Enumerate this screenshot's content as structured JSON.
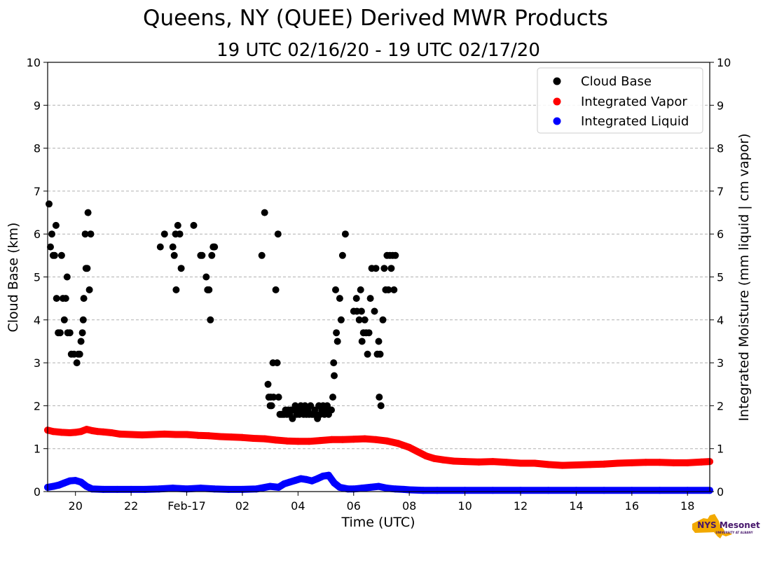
{
  "chart_data": {
    "type": "scatter",
    "title": "Queens, NY (QUEE) Derived MWR Products",
    "subtitle": "19 UTC 02/16/20 - 19 UTC 02/17/20",
    "xlabel": "Time (UTC)",
    "ylabel": "Cloud Base (km)",
    "ylabel_right": "Integrated Moisture (mm liquid | cm vapor)",
    "x_unit": "hours since 00 UTC 02/16/20",
    "xlim": [
      19,
      42.8
    ],
    "ylim": [
      0,
      10
    ],
    "ylim_right": [
      0,
      10
    ],
    "x_ticks": [
      {
        "x": 20,
        "label": "20"
      },
      {
        "x": 22,
        "label": "22"
      },
      {
        "x": 24,
        "label": "Feb-17"
      },
      {
        "x": 26,
        "label": "02"
      },
      {
        "x": 28,
        "label": "04"
      },
      {
        "x": 30,
        "label": "06"
      },
      {
        "x": 32,
        "label": "08"
      },
      {
        "x": 34,
        "label": "10"
      },
      {
        "x": 36,
        "label": "12"
      },
      {
        "x": 38,
        "label": "14"
      },
      {
        "x": 40,
        "label": "16"
      },
      {
        "x": 42,
        "label": "18"
      }
    ],
    "y_ticks": [
      "0",
      "1",
      "2",
      "3",
      "4",
      "5",
      "6",
      "7",
      "8",
      "9",
      "10"
    ],
    "y_ticks_right": [
      "0",
      "1",
      "2",
      "3",
      "4",
      "5",
      "6",
      "7",
      "8",
      "9",
      "10"
    ],
    "grid": "horizontal dashed",
    "legend_position": "top-right",
    "legend": [
      "Cloud Base",
      "Integrated Vapor",
      "Integrated Liquid"
    ],
    "series": [
      {
        "name": "Cloud Base",
        "color": "#000000",
        "axis": "left",
        "points": [
          [
            19.05,
            6.7
          ],
          [
            19.1,
            5.7
          ],
          [
            19.15,
            6.0
          ],
          [
            19.2,
            5.5
          ],
          [
            19.25,
            5.5
          ],
          [
            19.3,
            6.2
          ],
          [
            19.32,
            4.5
          ],
          [
            19.38,
            3.7
          ],
          [
            19.45,
            3.7
          ],
          [
            19.5,
            5.5
          ],
          [
            19.55,
            4.5
          ],
          [
            19.6,
            4.0
          ],
          [
            19.65,
            4.5
          ],
          [
            19.7,
            5.0
          ],
          [
            19.72,
            3.7
          ],
          [
            19.8,
            3.7
          ],
          [
            19.85,
            3.2
          ],
          [
            19.95,
            3.2
          ],
          [
            20.05,
            3.0
          ],
          [
            20.1,
            3.2
          ],
          [
            20.15,
            3.2
          ],
          [
            20.2,
            3.5
          ],
          [
            20.25,
            3.7
          ],
          [
            20.28,
            4.0
          ],
          [
            20.3,
            4.5
          ],
          [
            20.35,
            6.0
          ],
          [
            20.38,
            5.2
          ],
          [
            20.42,
            5.2
          ],
          [
            20.45,
            6.5
          ],
          [
            20.5,
            4.7
          ],
          [
            20.55,
            6.0
          ],
          [
            23.05,
            5.7
          ],
          [
            23.2,
            6.0
          ],
          [
            23.5,
            5.7
          ],
          [
            23.55,
            5.5
          ],
          [
            23.6,
            6.0
          ],
          [
            23.62,
            4.7
          ],
          [
            23.68,
            6.2
          ],
          [
            23.75,
            6.0
          ],
          [
            23.8,
            5.2
          ],
          [
            24.25,
            6.2
          ],
          [
            24.5,
            5.5
          ],
          [
            24.55,
            5.5
          ],
          [
            24.7,
            5.0
          ],
          [
            24.75,
            4.7
          ],
          [
            24.8,
            4.7
          ],
          [
            24.85,
            4.0
          ],
          [
            24.9,
            5.5
          ],
          [
            24.95,
            5.7
          ],
          [
            25.0,
            5.7
          ],
          [
            26.7,
            5.5
          ],
          [
            26.8,
            6.5
          ],
          [
            26.92,
            2.5
          ],
          [
            26.95,
            2.2
          ],
          [
            27.0,
            2.0
          ],
          [
            27.02,
            2.2
          ],
          [
            27.05,
            2.0
          ],
          [
            27.1,
            3.0
          ],
          [
            27.12,
            2.2
          ],
          [
            27.2,
            4.7
          ],
          [
            27.25,
            3.0
          ],
          [
            27.28,
            6.0
          ],
          [
            27.3,
            2.2
          ],
          [
            27.35,
            1.8
          ],
          [
            27.4,
            1.8
          ],
          [
            27.45,
            1.8
          ],
          [
            27.5,
            1.8
          ],
          [
            27.55,
            1.9
          ],
          [
            27.6,
            1.8
          ],
          [
            27.65,
            1.9
          ],
          [
            27.7,
            1.8
          ],
          [
            27.75,
            1.9
          ],
          [
            27.8,
            1.7
          ],
          [
            27.85,
            1.9
          ],
          [
            27.9,
            2.0
          ],
          [
            27.95,
            1.8
          ],
          [
            28.0,
            1.9
          ],
          [
            28.05,
            1.8
          ],
          [
            28.1,
            2.0
          ],
          [
            28.15,
            1.9
          ],
          [
            28.2,
            1.8
          ],
          [
            28.25,
            2.0
          ],
          [
            28.3,
            1.8
          ],
          [
            28.35,
            1.9
          ],
          [
            28.4,
            1.8
          ],
          [
            28.45,
            2.0
          ],
          [
            28.5,
            1.8
          ],
          [
            28.55,
            1.8
          ],
          [
            28.6,
            1.9
          ],
          [
            28.65,
            1.8
          ],
          [
            28.7,
            1.7
          ],
          [
            28.75,
            2.0
          ],
          [
            28.8,
            1.8
          ],
          [
            28.85,
            1.9
          ],
          [
            28.9,
            2.0
          ],
          [
            28.95,
            1.8
          ],
          [
            29.0,
            1.9
          ],
          [
            29.05,
            2.0
          ],
          [
            29.1,
            1.8
          ],
          [
            29.15,
            1.9
          ],
          [
            29.2,
            1.9
          ],
          [
            29.25,
            2.2
          ],
          [
            29.28,
            3.0
          ],
          [
            29.3,
            2.7
          ],
          [
            29.35,
            4.7
          ],
          [
            29.38,
            3.7
          ],
          [
            29.42,
            3.5
          ],
          [
            29.5,
            4.5
          ],
          [
            29.55,
            4.0
          ],
          [
            29.6,
            5.5
          ],
          [
            29.7,
            6.0
          ],
          [
            30.0,
            4.2
          ],
          [
            30.1,
            4.5
          ],
          [
            30.12,
            4.2
          ],
          [
            30.2,
            4.0
          ],
          [
            30.25,
            4.7
          ],
          [
            30.28,
            4.2
          ],
          [
            30.3,
            3.5
          ],
          [
            30.35,
            3.7
          ],
          [
            30.4,
            4.0
          ],
          [
            30.45,
            3.7
          ],
          [
            30.5,
            3.2
          ],
          [
            30.55,
            3.7
          ],
          [
            30.6,
            4.5
          ],
          [
            30.65,
            5.2
          ],
          [
            30.75,
            4.2
          ],
          [
            30.8,
            5.2
          ],
          [
            30.85,
            3.2
          ],
          [
            30.9,
            3.5
          ],
          [
            30.92,
            2.2
          ],
          [
            30.95,
            3.2
          ],
          [
            30.98,
            2.0
          ],
          [
            31.05,
            4.0
          ],
          [
            31.1,
            5.2
          ],
          [
            31.15,
            4.7
          ],
          [
            31.2,
            5.5
          ],
          [
            31.25,
            4.7
          ],
          [
            31.3,
            5.5
          ],
          [
            31.35,
            5.2
          ],
          [
            31.4,
            5.5
          ],
          [
            31.45,
            4.7
          ],
          [
            31.5,
            5.5
          ]
        ]
      },
      {
        "name": "Integrated Vapor",
        "color": "#ff0000",
        "axis": "right",
        "points": [
          [
            19.0,
            1.43
          ],
          [
            19.2,
            1.4
          ],
          [
            19.5,
            1.38
          ],
          [
            19.8,
            1.37
          ],
          [
            20.0,
            1.38
          ],
          [
            20.2,
            1.4
          ],
          [
            20.4,
            1.45
          ],
          [
            20.6,
            1.42
          ],
          [
            20.8,
            1.4
          ],
          [
            21.0,
            1.39
          ],
          [
            21.3,
            1.37
          ],
          [
            21.6,
            1.34
          ],
          [
            22.0,
            1.33
          ],
          [
            22.4,
            1.32
          ],
          [
            22.8,
            1.33
          ],
          [
            23.2,
            1.34
          ],
          [
            23.6,
            1.33
          ],
          [
            24.0,
            1.33
          ],
          [
            24.4,
            1.31
          ],
          [
            24.8,
            1.3
          ],
          [
            25.2,
            1.28
          ],
          [
            25.6,
            1.27
          ],
          [
            26.0,
            1.26
          ],
          [
            26.4,
            1.24
          ],
          [
            26.8,
            1.23
          ],
          [
            27.2,
            1.2
          ],
          [
            27.6,
            1.18
          ],
          [
            28.0,
            1.17
          ],
          [
            28.4,
            1.17
          ],
          [
            28.8,
            1.19
          ],
          [
            29.2,
            1.21
          ],
          [
            29.6,
            1.21
          ],
          [
            30.0,
            1.22
          ],
          [
            30.4,
            1.23
          ],
          [
            30.8,
            1.21
          ],
          [
            31.2,
            1.18
          ],
          [
            31.6,
            1.12
          ],
          [
            32.0,
            1.03
          ],
          [
            32.3,
            0.93
          ],
          [
            32.6,
            0.83
          ],
          [
            32.9,
            0.77
          ],
          [
            33.2,
            0.74
          ],
          [
            33.6,
            0.71
          ],
          [
            34.0,
            0.7
          ],
          [
            34.5,
            0.69
          ],
          [
            35.0,
            0.7
          ],
          [
            35.5,
            0.68
          ],
          [
            36.0,
            0.66
          ],
          [
            36.5,
            0.66
          ],
          [
            37.0,
            0.63
          ],
          [
            37.5,
            0.61
          ],
          [
            38.0,
            0.62
          ],
          [
            38.5,
            0.63
          ],
          [
            39.0,
            0.64
          ],
          [
            39.5,
            0.66
          ],
          [
            40.0,
            0.67
          ],
          [
            40.5,
            0.68
          ],
          [
            41.0,
            0.68
          ],
          [
            41.5,
            0.67
          ],
          [
            42.0,
            0.67
          ],
          [
            42.5,
            0.69
          ],
          [
            42.8,
            0.7
          ]
        ]
      },
      {
        "name": "Integrated Liquid",
        "color": "#0000ff",
        "axis": "right",
        "points": [
          [
            19.0,
            0.1
          ],
          [
            19.2,
            0.12
          ],
          [
            19.4,
            0.15
          ],
          [
            19.6,
            0.2
          ],
          [
            19.8,
            0.25
          ],
          [
            20.0,
            0.26
          ],
          [
            20.2,
            0.22
          ],
          [
            20.4,
            0.12
          ],
          [
            20.6,
            0.06
          ],
          [
            21.0,
            0.05
          ],
          [
            21.5,
            0.05
          ],
          [
            22.0,
            0.05
          ],
          [
            22.5,
            0.05
          ],
          [
            23.0,
            0.06
          ],
          [
            23.5,
            0.08
          ],
          [
            24.0,
            0.06
          ],
          [
            24.5,
            0.08
          ],
          [
            25.0,
            0.06
          ],
          [
            25.5,
            0.05
          ],
          [
            26.0,
            0.05
          ],
          [
            26.5,
            0.06
          ],
          [
            27.0,
            0.12
          ],
          [
            27.3,
            0.1
          ],
          [
            27.5,
            0.18
          ],
          [
            27.7,
            0.22
          ],
          [
            27.9,
            0.26
          ],
          [
            28.1,
            0.3
          ],
          [
            28.3,
            0.28
          ],
          [
            28.5,
            0.25
          ],
          [
            28.7,
            0.3
          ],
          [
            28.9,
            0.36
          ],
          [
            29.1,
            0.38
          ],
          [
            29.3,
            0.2
          ],
          [
            29.5,
            0.1
          ],
          [
            29.8,
            0.06
          ],
          [
            30.0,
            0.06
          ],
          [
            30.3,
            0.08
          ],
          [
            30.6,
            0.1
          ],
          [
            30.9,
            0.12
          ],
          [
            31.2,
            0.08
          ],
          [
            31.5,
            0.06
          ],
          [
            31.8,
            0.05
          ],
          [
            32.0,
            0.04
          ],
          [
            32.5,
            0.03
          ],
          [
            33.0,
            0.03
          ],
          [
            34.0,
            0.03
          ],
          [
            35.0,
            0.03
          ],
          [
            36.0,
            0.03
          ],
          [
            37.0,
            0.03
          ],
          [
            38.0,
            0.03
          ],
          [
            39.0,
            0.03
          ],
          [
            40.0,
            0.03
          ],
          [
            41.0,
            0.03
          ],
          [
            42.0,
            0.03
          ],
          [
            42.8,
            0.03
          ]
        ]
      }
    ]
  },
  "logo": {
    "text_main": "NYS Mesonet",
    "text_sub": "UNIVERSITY AT ALBANY",
    "state_color": "#f2a900",
    "text_color": "#46166b"
  }
}
